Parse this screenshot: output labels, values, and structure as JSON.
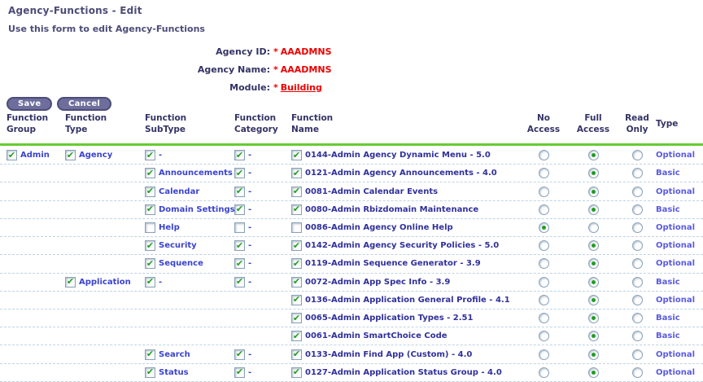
{
  "page": {
    "title": "Agency-Functions - Edit",
    "subtitle": "Use this form to edit Agency-Functions"
  },
  "form": {
    "required_marker": "*",
    "fields": [
      {
        "label": "Agency ID:",
        "value": "AAADMNS",
        "is_link": false
      },
      {
        "label": "Agency Name:",
        "value": "AAADMNS",
        "is_link": false
      },
      {
        "label": "Module:",
        "value": "Building",
        "is_link": true
      }
    ]
  },
  "toolbar": {
    "save_label": "Save",
    "cancel_label": "Cancel"
  },
  "table": {
    "headers": [
      "Function\nGroup",
      "Function\nType",
      "Function\nSubType",
      "Function\nCategory",
      "Function\nName",
      "No\nAccess",
      "Full\nAccess",
      "Read\nOnly",
      "Type"
    ],
    "access_options": [
      "no",
      "full",
      "read"
    ],
    "rows": [
      {
        "group": {
          "checked": true,
          "label": "Admin"
        },
        "type": {
          "checked": true,
          "label": "Agency"
        },
        "subtype": {
          "checked": true,
          "label": "-"
        },
        "category": {
          "checked": true,
          "label": "-"
        },
        "name": {
          "checked": true,
          "label": "0144-Admin Agency Dynamic Menu - 5.0"
        },
        "access": "full",
        "type_col": "Optional"
      },
      {
        "group": null,
        "type": null,
        "subtype": {
          "checked": true,
          "label": "Announcements"
        },
        "category": {
          "checked": true,
          "label": "-"
        },
        "name": {
          "checked": true,
          "label": "0121-Admin Agency Announcements - 4.0"
        },
        "access": "full",
        "type_col": "Basic"
      },
      {
        "group": null,
        "type": null,
        "subtype": {
          "checked": true,
          "label": "Calendar"
        },
        "category": {
          "checked": true,
          "label": "-"
        },
        "name": {
          "checked": true,
          "label": "0081-Admin Calendar Events"
        },
        "access": "full",
        "type_col": "Optional"
      },
      {
        "group": null,
        "type": null,
        "subtype": {
          "checked": true,
          "label": "Domain Settings"
        },
        "category": {
          "checked": true,
          "label": "-"
        },
        "name": {
          "checked": true,
          "label": "0080-Admin Rbizdomain Maintenance"
        },
        "access": "full",
        "type_col": "Basic"
      },
      {
        "group": null,
        "type": null,
        "subtype": {
          "checked": false,
          "label": "Help"
        },
        "category": {
          "checked": false,
          "label": "-"
        },
        "name": {
          "checked": false,
          "label": "0086-Admin Agency Online Help"
        },
        "access": "no",
        "type_col": "Optional"
      },
      {
        "group": null,
        "type": null,
        "subtype": {
          "checked": true,
          "label": "Security"
        },
        "category": {
          "checked": true,
          "label": "-"
        },
        "name": {
          "checked": true,
          "label": "0142-Admin Agency Security Policies - 5.0"
        },
        "access": "full",
        "type_col": "Optional"
      },
      {
        "group": null,
        "type": null,
        "subtype": {
          "checked": true,
          "label": "Sequence"
        },
        "category": {
          "checked": true,
          "label": "-"
        },
        "name": {
          "checked": true,
          "label": "0119-Admin Sequence Generator - 3.9"
        },
        "access": "full",
        "type_col": "Optional"
      },
      {
        "group": null,
        "type": {
          "checked": true,
          "label": "Application"
        },
        "subtype": {
          "checked": true,
          "label": "-"
        },
        "category": {
          "checked": true,
          "label": "-"
        },
        "name": {
          "checked": true,
          "label": "0072-Admin App Spec Info - 3.9"
        },
        "access": "full",
        "type_col": "Basic"
      },
      {
        "group": null,
        "type": null,
        "subtype": null,
        "category": null,
        "name": {
          "checked": true,
          "label": "0136-Admin Application General Profile - 4.1"
        },
        "access": "full",
        "type_col": "Optional"
      },
      {
        "group": null,
        "type": null,
        "subtype": null,
        "category": null,
        "name": {
          "checked": true,
          "label": "0065-Admin Application Types - 2.51"
        },
        "access": "full",
        "type_col": "Basic"
      },
      {
        "group": null,
        "type": null,
        "subtype": null,
        "category": null,
        "name": {
          "checked": true,
          "label": "0061-Admin SmartChoice Code"
        },
        "access": "full",
        "type_col": "Basic"
      },
      {
        "group": null,
        "type": null,
        "subtype": {
          "checked": true,
          "label": "Search"
        },
        "category": {
          "checked": true,
          "label": "-"
        },
        "name": {
          "checked": true,
          "label": "0133-Admin Find App (Custom) - 4.0"
        },
        "access": "full",
        "type_col": "Optional"
      },
      {
        "group": null,
        "type": null,
        "subtype": {
          "checked": true,
          "label": "Status"
        },
        "category": {
          "checked": true,
          "label": "-"
        },
        "name": {
          "checked": true,
          "label": "0127-Admin Application Status Group - 4.0"
        },
        "access": "full",
        "type_col": "Optional"
      }
    ]
  },
  "colors": {
    "header_text": "#333366",
    "title_text": "#4c4c78",
    "required_red": "#ee0000",
    "link_blue": "#3a43cf",
    "name_navy": "#30309c",
    "type_purple": "#5a5ae0",
    "check_green": "#1f9e1f",
    "divider_green": "#66cc33",
    "button_purple": "#6e6e9d",
    "row_separator": "#bed3e4"
  }
}
